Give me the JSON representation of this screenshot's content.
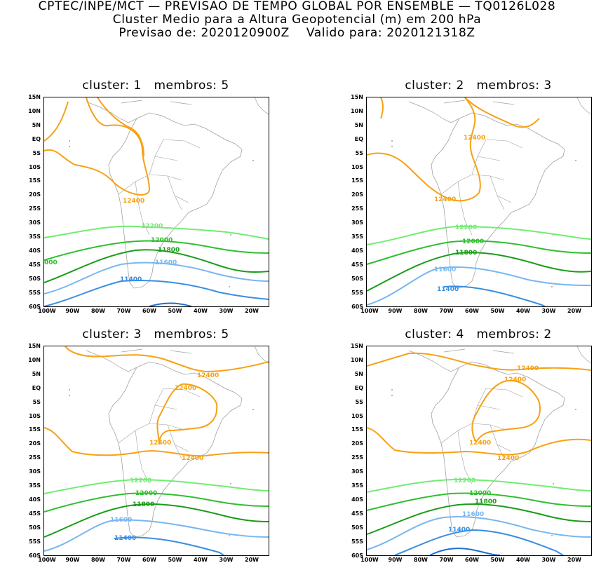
{
  "header": {
    "line1": "CPTEC/INPE/MCT — PREVISAO DE TEMPO GLOBAL POR ENSEMBLE — TQ0126L028",
    "line2": "Cluster Medio para a Altura Geopotencial (m) em 200 hPa",
    "line3": "Previsao de: 2020120900Z    Valido para: 2020121318Z"
  },
  "lat_labels": [
    "15N",
    "10N",
    "5N",
    "EQ",
    "5S",
    "10S",
    "15S",
    "20S",
    "25S",
    "30S",
    "35S",
    "40S",
    "45S",
    "50S",
    "55S",
    "60S"
  ],
  "lon_labels": [
    "100W",
    "90W",
    "80W",
    "70W",
    "60W",
    "50W",
    "40W",
    "30W",
    "20W"
  ],
  "colors": {
    "c12400": "#f7a114",
    "c12200": "#72ec72",
    "c12000": "#2fbf2f",
    "c11800": "#1a9c1a",
    "c11600": "#78b7f0",
    "c11400": "#3a8ee0",
    "c11200": "#1f6fd0",
    "coast": "#a0a0a0"
  },
  "panels": [
    {
      "title": "cluster: 1   membros: 5",
      "labels": {
        "l12400": "12400",
        "l12200": "12200",
        "l12000": "12000",
        "l11800": "11800",
        "l11600": "11600",
        "l11400": "11400",
        "edge": "000"
      }
    },
    {
      "title": "cluster: 2   membros: 3",
      "labels": {
        "l12400a": "12400",
        "l12400b": "12400",
        "l12200": "12200",
        "l12000": "12000",
        "l11800": "11800",
        "l11600": "11600",
        "l11400": "11400"
      }
    },
    {
      "title": "cluster: 3   membros: 5",
      "labels": {
        "l12400a": "12400",
        "l12400b": "12400",
        "l12400c": "12400",
        "l12400d": "12400",
        "l12200": "12200",
        "l12000": "12000",
        "l11800": "11800",
        "l11600": "11600",
        "l11400": "11400"
      }
    },
    {
      "title": "cluster: 4   membros: 2",
      "labels": {
        "l12400a": "12400",
        "l12400b": "12400",
        "l12400c": "12400",
        "l12400d": "12400",
        "l12200": "12200",
        "l12000": "12000",
        "l11800": "11800",
        "l11600": "11600",
        "l11400": "11400"
      }
    }
  ]
}
